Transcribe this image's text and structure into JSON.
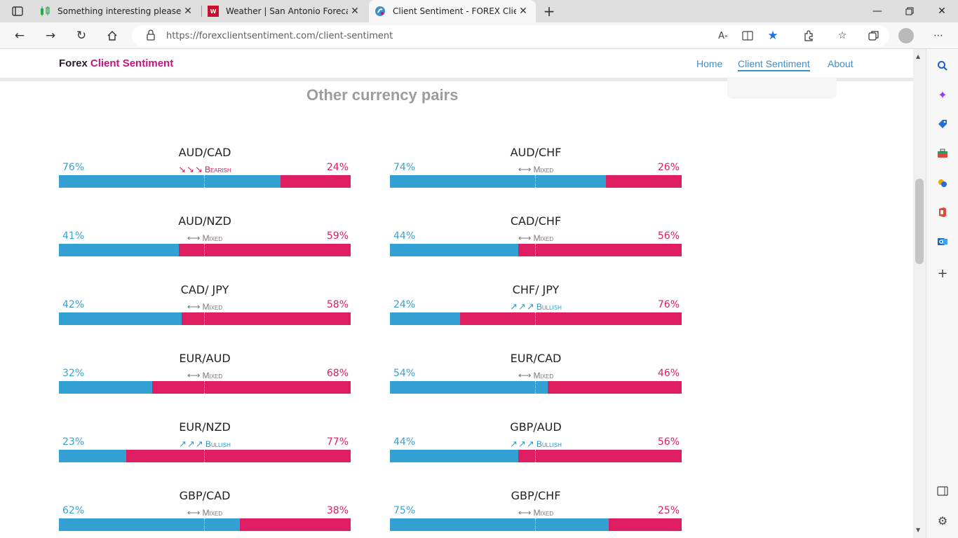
{
  "browser": {
    "tabs": [
      {
        "title": "Something interesting please po",
        "active": false
      },
      {
        "title": "Weather | San Antonio Forecast,",
        "active": false
      },
      {
        "title": "Client Sentiment - FOREX Client",
        "active": true
      }
    ],
    "new_tab_label": "+",
    "url": "https://forexclientsentiment.com/client-sentiment"
  },
  "site": {
    "brand_part1": "Forex",
    "brand_part2": "Client Sentiment",
    "nav": [
      "Home",
      "Client Sentiment",
      "About"
    ],
    "active_nav": "Client Sentiment"
  },
  "section_title": "Other currency pairs",
  "colors": {
    "long": "#34a1d5",
    "short": "#df1d62",
    "brand": "#c4147d",
    "nav_link": "#3d8fc9"
  },
  "pairs": [
    {
      "name": "AUD/CAD",
      "long": "76%",
      "short": "24%",
      "long_fraction": 0.76,
      "signal": "Bearish",
      "signal_type": "bearish"
    },
    {
      "name": "AUD/CHF",
      "long": "74%",
      "short": "26%",
      "long_fraction": 0.74,
      "signal": "Mixed",
      "signal_type": "mixed"
    },
    {
      "name": "AUD/NZD",
      "long": "41%",
      "short": "59%",
      "long_fraction": 0.41,
      "signal": "Mixed",
      "signal_type": "mixed"
    },
    {
      "name": "CAD/CHF",
      "long": "44%",
      "short": "56%",
      "long_fraction": 0.44,
      "signal": "Mixed",
      "signal_type": "mixed"
    },
    {
      "name": "CAD/ JPY",
      "long": "42%",
      "short": "58%",
      "long_fraction": 0.42,
      "signal": "Mixed",
      "signal_type": "mixed"
    },
    {
      "name": "CHF/ JPY",
      "long": "24%",
      "short": "76%",
      "long_fraction": 0.24,
      "signal": "Bullish",
      "signal_type": "bullish"
    },
    {
      "name": "EUR/AUD",
      "long": "32%",
      "short": "68%",
      "long_fraction": 0.32,
      "signal": "Mixed",
      "signal_type": "mixed"
    },
    {
      "name": "EUR/CAD",
      "long": "54%",
      "short": "46%",
      "long_fraction": 0.54,
      "signal": "Mixed",
      "signal_type": "mixed"
    },
    {
      "name": "EUR/NZD",
      "long": "23%",
      "short": "77%",
      "long_fraction": 0.23,
      "signal": "Bullish",
      "signal_type": "bullish"
    },
    {
      "name": "GBP/AUD",
      "long": "44%",
      "short": "56%",
      "long_fraction": 0.44,
      "signal": "Bullish",
      "signal_type": "bullish"
    },
    {
      "name": "GBP/CAD",
      "long": "62%",
      "short": "38%",
      "long_fraction": 0.62,
      "signal": "Mixed",
      "signal_type": "mixed"
    },
    {
      "name": "GBP/CHF",
      "long": "75%",
      "short": "25%",
      "long_fraction": 0.75,
      "signal": "Mixed",
      "signal_type": "mixed"
    }
  ]
}
